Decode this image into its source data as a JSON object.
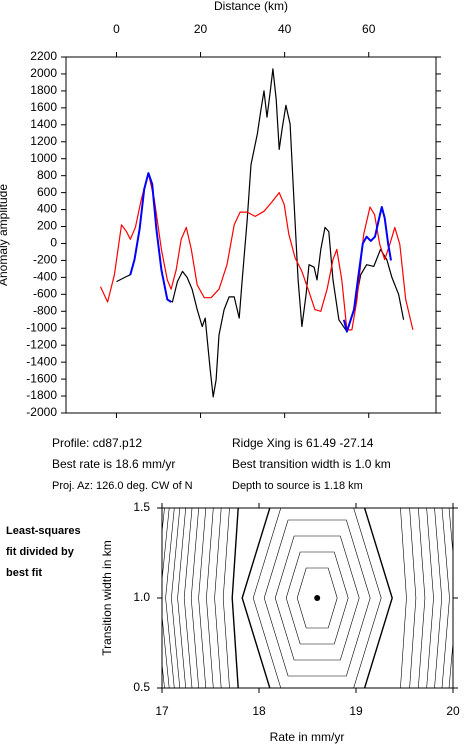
{
  "chart_data": [
    {
      "type": "line",
      "xlabel": "Distance (km)",
      "ylabel": "Anomaly amplitude",
      "xlim": [
        -12,
        76
      ],
      "xticks": [
        0,
        20,
        40,
        60
      ],
      "ylim": [
        -2000,
        2200
      ],
      "yticks": [
        -2000,
        -1800,
        -1600,
        -1400,
        -1200,
        -1000,
        -800,
        -600,
        -400,
        -200,
        0,
        200,
        400,
        600,
        800,
        1000,
        1200,
        1400,
        1600,
        1800,
        2000,
        2200
      ],
      "series": [
        {
          "color": "#000000",
          "x": [
            0,
            2.4,
            3.3,
            4.3,
            5.5,
            6.6,
            7.6,
            8.5,
            9.5,
            10.7,
            12.1,
            13.3,
            14.5,
            15.7,
            16.8,
            18,
            19.2,
            20.4,
            21.1,
            21.6,
            22.3,
            23,
            23.7,
            24.4,
            25.6,
            26.8,
            28,
            29.2,
            29.9,
            31.1,
            32,
            33.5,
            34.4,
            35.1,
            35.8,
            36.5,
            37.2,
            38,
            38.7,
            39.4,
            40.3,
            41.3,
            42.2,
            43.2,
            44.1,
            45.1,
            45.8,
            47,
            47.7,
            48.6,
            49.6,
            50.5,
            51.5,
            52.9,
            54.8,
            56.5,
            58.1,
            59.5,
            61.2,
            62.8,
            64.3,
            65.5,
            67.1,
            68.3
          ],
          "values": [
            -450,
            -390,
            -370,
            -190,
            170,
            640,
            830,
            700,
            170,
            -310,
            -660,
            -690,
            -450,
            -330,
            -400,
            -540,
            -780,
            -980,
            -880,
            -1140,
            -1490,
            -1810,
            -1610,
            -1080,
            -780,
            -630,
            -630,
            -880,
            -430,
            280,
            930,
            1290,
            1590,
            1800,
            1490,
            1760,
            2060,
            1700,
            1110,
            1350,
            1630,
            1410,
            520,
            -430,
            -980,
            -600,
            -250,
            -280,
            -430,
            -70,
            190,
            140,
            -430,
            -900,
            -1040,
            -780,
            -370,
            -250,
            -270,
            -70,
            -190,
            -400,
            -600,
            -900
          ]
        },
        {
          "color": "#ff0000",
          "x": [
            -3.8,
            -2.1,
            -0.5,
            1.2,
            2.4,
            3.3,
            4.5,
            5.9,
            7.6,
            9,
            10.7,
            12.1,
            13,
            14.2,
            15.4,
            16.6,
            17.8,
            19.2,
            20.9,
            22.5,
            24.4,
            26.3,
            28,
            29.4,
            31.1,
            33,
            35.1,
            37,
            38.7,
            39.9,
            41,
            42.5,
            44.1,
            45.8,
            47.2,
            48.6,
            50.1,
            51.5,
            52.4,
            53.6,
            54.8,
            56,
            57.2,
            58.8,
            60.3,
            61.4,
            62.6,
            63.8,
            65,
            66.2,
            67.4,
            68.8,
            70.5
          ],
          "values": [
            -510,
            -690,
            -370,
            220,
            140,
            50,
            190,
            520,
            830,
            520,
            -70,
            -430,
            -540,
            -310,
            50,
            190,
            -70,
            -490,
            -640,
            -640,
            -540,
            -250,
            220,
            370,
            370,
            320,
            380,
            490,
            600,
            460,
            110,
            -170,
            -330,
            -570,
            -780,
            -800,
            -540,
            -190,
            -70,
            -430,
            -1020,
            -1020,
            -660,
            110,
            430,
            340,
            -10,
            -190,
            -10,
            190,
            -10,
            -660,
            -1020
          ]
        },
        {
          "color": "#0000ff",
          "x": [
            3.3,
            4.3,
            5.5,
            6.6,
            7.6,
            8.5,
            9.5,
            10.7,
            12.1,
            13
          ],
          "values": [
            -370,
            -190,
            170,
            640,
            830,
            700,
            170,
            -310,
            -660,
            -690
          ]
        },
        {
          "color": "#0000ff",
          "x": [
            54.1,
            54.8,
            56.5,
            57.5,
            58.6,
            59.5,
            60.5,
            61.5,
            62.5,
            63.1,
            63.8,
            64.6,
            65.3
          ],
          "values": [
            -900,
            -1040,
            -780,
            -400,
            0,
            80,
            30,
            80,
            300,
            430,
            300,
            0,
            -200
          ]
        }
      ],
      "annotations": [
        "Profile: cd87.p12",
        "Best rate is 18.6 mm/yr",
        "Proj. Az: 126.0 deg. CW of N",
        "Ridge Xing is 61.49 -27.14",
        "Best transition width is 1.0 km",
        "Depth to source is   1.18 km"
      ]
    },
    {
      "type": "contour",
      "xlabel": "Rate in mm/yr",
      "ylabel": "Transition width in km",
      "xlim": [
        17,
        20
      ],
      "xticks": [
        17,
        18,
        19,
        20
      ],
      "ylim": [
        0.5,
        1.5
      ],
      "yticks": [
        0.5,
        {
          "value": 1,
          "label": "1.0"
        },
        1.5
      ],
      "best_fit": {
        "x": 18.6,
        "y": 1
      },
      "note": [
        "Least-squares",
        "fit divided by",
        "best fit"
      ]
    }
  ]
}
